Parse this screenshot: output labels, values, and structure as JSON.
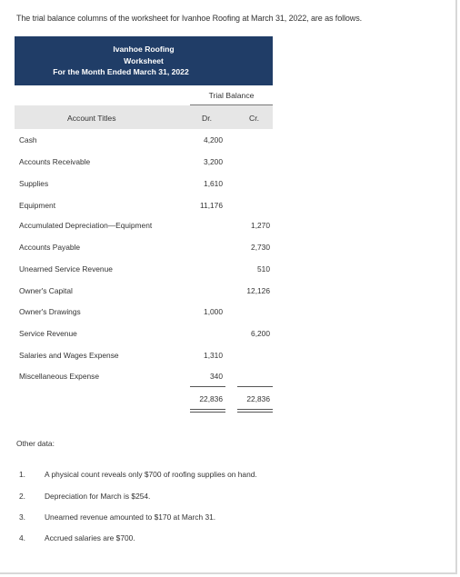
{
  "intro": "The trial balance columns of the worksheet for Ivanhoe Roofing at March 31, 2022, are as follows.",
  "worksheet": {
    "company": "Ivanhoe Roofing",
    "title": "Worksheet",
    "period": "For the Month Ended March 31, 2022",
    "section": "Trial Balance",
    "col_account": "Account Titles",
    "col_dr": "Dr.",
    "col_cr": "Cr."
  },
  "accounts": [
    {
      "name": "Cash",
      "dr": "4,200",
      "cr": ""
    },
    {
      "name": "Accounts Receivable",
      "dr": "3,200",
      "cr": ""
    },
    {
      "name": "Supplies",
      "dr": "1,610",
      "cr": ""
    },
    {
      "name": "Equipment",
      "dr": "11,176",
      "cr": ""
    },
    {
      "name": "Accumulated Depreciation—Equipment",
      "dr": "",
      "cr": "1,270"
    },
    {
      "name": "Accounts Payable",
      "dr": "",
      "cr": "2,730"
    },
    {
      "name": "Unearned Service Revenue",
      "dr": "",
      "cr": "510"
    },
    {
      "name": "Owner's Capital",
      "dr": "",
      "cr": "12,126"
    },
    {
      "name": "Owner's Drawings",
      "dr": "1,000",
      "cr": ""
    },
    {
      "name": "Service Revenue",
      "dr": "",
      "cr": "6,200"
    },
    {
      "name": "Salaries and Wages Expense",
      "dr": "1,310",
      "cr": ""
    },
    {
      "name": "Miscellaneous Expense",
      "dr": "340",
      "cr": ""
    }
  ],
  "totals": {
    "dr": "22,836",
    "cr": "22,836"
  },
  "other_label": "Other data:",
  "notes": [
    {
      "num": "1.",
      "text": "A physical count reveals only $700 of roofing supplies on hand."
    },
    {
      "num": "2.",
      "text": "Depreciation for March is $254."
    },
    {
      "num": "3.",
      "text": "Unearned revenue amounted to $170 at March 31."
    },
    {
      "num": "4.",
      "text": "Accrued salaries are $700."
    }
  ]
}
